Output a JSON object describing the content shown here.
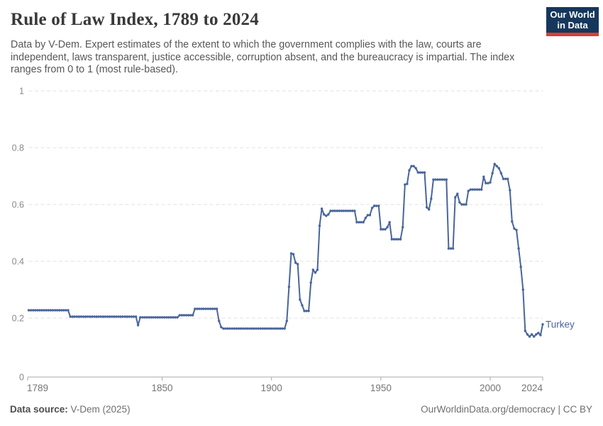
{
  "header": {
    "title": "Rule of Law Index, 1789 to 2024",
    "subtitle_lines": [
      "Data by V-Dem. Expert estimates of the extent to which the government complies with the law, courts are",
      "independent, laws transparent, justice accessible, corruption absent, and the bureaucracy is impartial. The",
      "index ranges from 0 to 1 (most rule-based)."
    ]
  },
  "logo": {
    "line1": "Our World",
    "line2": "in Data",
    "bg_color": "#16375c",
    "bar_color": "#dc3e32"
  },
  "footer": {
    "source_label": "Data source:",
    "source_value": " V-Dem (2025)",
    "credit": "OurWorldinData.org/democracy | CC BY"
  },
  "chart_data": {
    "type": "line",
    "title": "Rule of Law Index, 1789 to 2024",
    "xlabel": "",
    "ylabel": "",
    "xlim": [
      1789,
      2024
    ],
    "ylim": [
      0,
      1
    ],
    "x_ticks": [
      1789,
      1850,
      1900,
      1950,
      2000,
      2024
    ],
    "y_ticks": [
      0,
      0.2,
      0.4,
      0.6,
      0.8,
      1
    ],
    "y_tick_labels": [
      "0",
      "0.2",
      "0.4",
      "0.6",
      "0.8",
      "1"
    ],
    "grid": "horizontal-dashed",
    "legend_position": "end-of-line-label",
    "colors": {
      "line": "#49659d",
      "entity_label": "#49659d",
      "gridline": "#e1e1e1",
      "axis": "#a8a8a8",
      "tick_text": "#757575"
    },
    "series": [
      {
        "name": "Turkey",
        "color": "#49659d",
        "markers": true,
        "segments_format": "[startYear, endYear, value] — one data point per year",
        "segments": [
          [
            1789,
            1807,
            0.2275
          ],
          [
            1808,
            1838,
            0.205
          ],
          [
            1839,
            1839,
            0.175
          ],
          [
            1840,
            1857,
            0.2025
          ],
          [
            1858,
            1864,
            0.21
          ],
          [
            1865,
            1875,
            0.2325
          ],
          [
            1876,
            1876,
            0.19
          ],
          [
            1877,
            1877,
            0.168
          ],
          [
            1878,
            1906,
            0.163
          ],
          [
            1907,
            1907,
            0.19
          ],
          [
            1908,
            1908,
            0.31
          ],
          [
            1909,
            1909,
            0.4275
          ],
          [
            1910,
            1910,
            0.425
          ],
          [
            1911,
            1911,
            0.395
          ],
          [
            1912,
            1912,
            0.39
          ],
          [
            1913,
            1913,
            0.265
          ],
          [
            1914,
            1914,
            0.245
          ],
          [
            1915,
            1917,
            0.225
          ],
          [
            1918,
            1918,
            0.325
          ],
          [
            1919,
            1919,
            0.37
          ],
          [
            1920,
            1920,
            0.36
          ],
          [
            1921,
            1921,
            0.37
          ],
          [
            1922,
            1922,
            0.525
          ],
          [
            1923,
            1923,
            0.585
          ],
          [
            1924,
            1924,
            0.565
          ],
          [
            1925,
            1925,
            0.56
          ],
          [
            1926,
            1926,
            0.565
          ],
          [
            1927,
            1938,
            0.5775
          ],
          [
            1939,
            1942,
            0.5375
          ],
          [
            1943,
            1943,
            0.5525
          ],
          [
            1944,
            1945,
            0.5625
          ],
          [
            1946,
            1946,
            0.5875
          ],
          [
            1947,
            1949,
            0.595
          ],
          [
            1950,
            1952,
            0.5125
          ],
          [
            1953,
            1953,
            0.52
          ],
          [
            1954,
            1954,
            0.5375
          ],
          [
            1955,
            1959,
            0.4775
          ],
          [
            1960,
            1960,
            0.52
          ],
          [
            1961,
            1961,
            0.67
          ],
          [
            1962,
            1962,
            0.6725
          ],
          [
            1963,
            1963,
            0.72
          ],
          [
            1964,
            1965,
            0.735
          ],
          [
            1966,
            1966,
            0.7275
          ],
          [
            1967,
            1970,
            0.7125
          ],
          [
            1971,
            1971,
            0.59
          ],
          [
            1972,
            1972,
            0.5825
          ],
          [
            1973,
            1973,
            0.62
          ],
          [
            1974,
            1980,
            0.6875
          ],
          [
            1981,
            1983,
            0.445
          ],
          [
            1984,
            1984,
            0.625
          ],
          [
            1985,
            1985,
            0.6375
          ],
          [
            1986,
            1986,
            0.6075
          ],
          [
            1987,
            1989,
            0.6
          ],
          [
            1990,
            1990,
            0.6475
          ],
          [
            1991,
            1996,
            0.6525
          ],
          [
            1997,
            1997,
            0.6975
          ],
          [
            1998,
            1999,
            0.675
          ],
          [
            2000,
            2000,
            0.6775
          ],
          [
            2001,
            2001,
            0.71
          ],
          [
            2002,
            2002,
            0.7425
          ],
          [
            2003,
            2003,
            0.735
          ],
          [
            2004,
            2004,
            0.7275
          ],
          [
            2005,
            2005,
            0.71
          ],
          [
            2006,
            2008,
            0.69
          ],
          [
            2009,
            2009,
            0.65
          ],
          [
            2010,
            2010,
            0.54
          ],
          [
            2011,
            2011,
            0.515
          ],
          [
            2012,
            2012,
            0.51
          ],
          [
            2013,
            2013,
            0.445
          ],
          [
            2014,
            2014,
            0.38
          ],
          [
            2015,
            2015,
            0.3
          ],
          [
            2016,
            2016,
            0.155
          ],
          [
            2017,
            2017,
            0.1425
          ],
          [
            2018,
            2018,
            0.135
          ],
          [
            2019,
            2019,
            0.1425
          ],
          [
            2020,
            2020,
            0.135
          ],
          [
            2021,
            2021,
            0.1425
          ],
          [
            2022,
            2022,
            0.1475
          ],
          [
            2023,
            2023,
            0.14
          ],
          [
            2024,
            2024,
            0.178
          ]
        ]
      }
    ]
  }
}
